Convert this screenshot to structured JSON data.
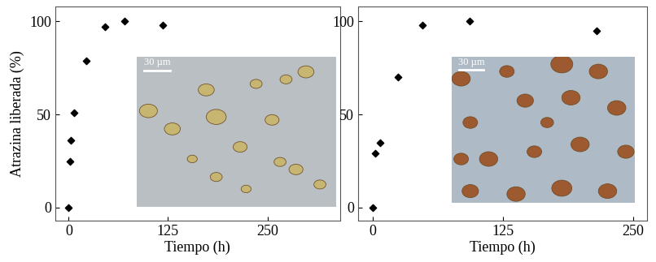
{
  "chart_data": [
    {
      "type": "scatter",
      "x_label": "Tiempo (h)",
      "y_label": "Atrazina liberada (%)",
      "x": [
        0,
        2,
        3,
        7,
        22,
        46,
        70,
        118
      ],
      "values": [
        0,
        25,
        36,
        51,
        79,
        97,
        100,
        98
      ],
      "color": "#000000",
      "marker": "diamond",
      "xlim": [
        -17,
        341
      ],
      "xticks": [
        0,
        125,
        250
      ],
      "ylim": [
        -7,
        108
      ],
      "yticks": [
        0,
        50,
        100
      ],
      "annotation": "30 µm"
    },
    {
      "type": "scatter",
      "x_label": "Tiempo (h)",
      "x": [
        0,
        2,
        7,
        24,
        48,
        93,
        215
      ],
      "values": [
        0,
        29,
        35,
        70,
        98,
        100,
        95
      ],
      "color": "#000000",
      "marker": "diamond",
      "xlim": [
        -14,
        263
      ],
      "xticks": [
        0,
        125,
        250
      ],
      "ylim": [
        -7,
        108
      ],
      "yticks": [
        0,
        50,
        100
      ],
      "annotation": "30 µm"
    }
  ]
}
